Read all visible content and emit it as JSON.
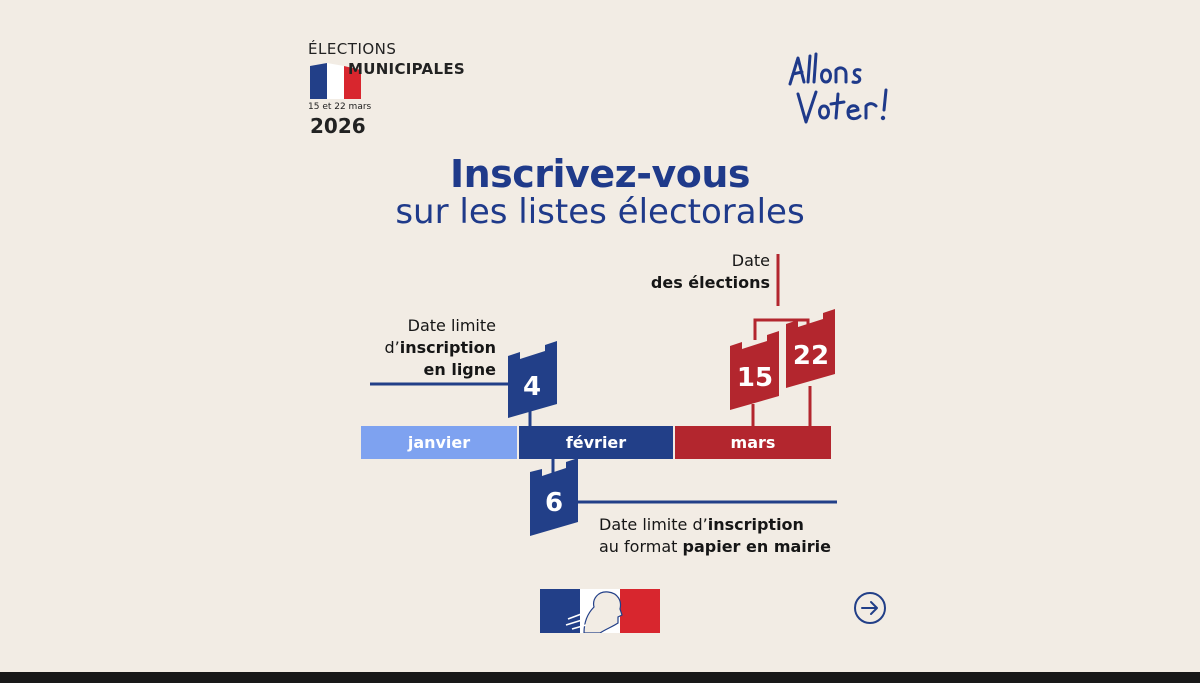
{
  "header": {
    "elections_label": "ÉLECTIONS",
    "municipales_label": "MUNICIPALES",
    "dates_small": "15 et 22 mars",
    "year": "2026"
  },
  "logo_text": "Allons Voter!",
  "title": {
    "line1": "Inscrivez-vous",
    "line2": "sur les listes électorales"
  },
  "labels": {
    "election_date_line1": "Date",
    "election_date_line2": "des élections",
    "online_line1": "Date limite",
    "online_prefix": "d’",
    "online_bold1": "inscription",
    "online_bold2": "en ligne",
    "paper_prefix": "Date limite d’",
    "paper_bold1": "inscription",
    "paper_mid": "au format ",
    "paper_bold2": "papier en mairie"
  },
  "timeline": {
    "months": [
      "janvier",
      "février",
      "mars"
    ],
    "online_deadline_day": "4",
    "paper_deadline_day": "6",
    "election_day_1": "15",
    "election_day_2": "22"
  },
  "colors": {
    "background": "#f2ece4",
    "navy": "#1f3a8a",
    "dark_blue": "#223f88",
    "light_blue": "#7ea2f0",
    "red": "#b3262e"
  },
  "icons": {
    "next": "arrow-right-circle-icon",
    "flag": "french-flag-icon",
    "logo": "marianne-logo"
  }
}
